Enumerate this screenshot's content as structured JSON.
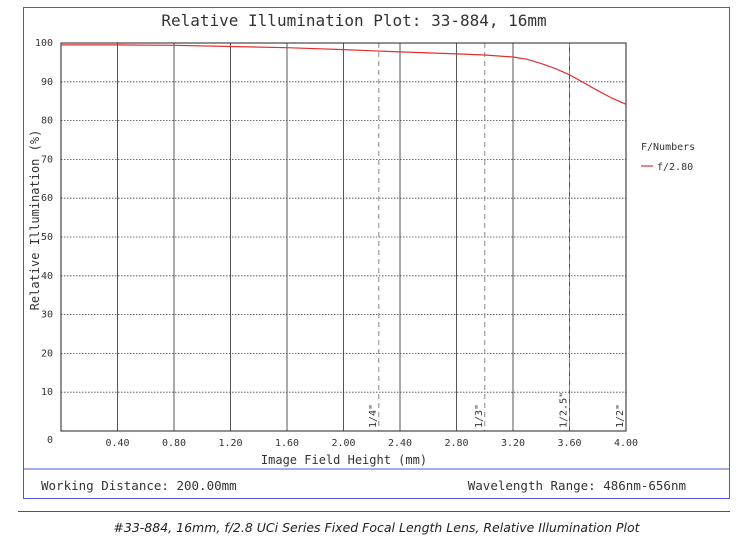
{
  "chart_data": {
    "type": "line",
    "title": "Relative Illumination Plot: 33-884, 16mm",
    "xlabel": "Image Field Height (mm)",
    "ylabel": "Relative Illumination (%)",
    "xlim": [
      0,
      4.0
    ],
    "ylim": [
      0,
      100
    ],
    "x_ticks": [
      "0.40",
      "0.80",
      "1.20",
      "1.60",
      "2.00",
      "2.40",
      "2.80",
      "3.20",
      "3.60",
      "4.00"
    ],
    "y_ticks": [
      "0",
      "10",
      "20",
      "30",
      "40",
      "50",
      "60",
      "70",
      "80",
      "90",
      "100"
    ],
    "grid": true,
    "legend_title": "F/Numbers",
    "legend_placement": "right",
    "series": [
      {
        "name": "f/2.80",
        "color": "#e03030",
        "x": [
          0.0,
          0.4,
          0.8,
          1.2,
          1.6,
          2.0,
          2.4,
          2.8,
          3.0,
          3.2,
          3.3,
          3.4,
          3.5,
          3.6,
          3.7,
          3.8,
          3.9,
          4.0
        ],
        "y": [
          99.5,
          99.5,
          99.4,
          99.1,
          98.8,
          98.3,
          97.7,
          97.2,
          96.9,
          96.4,
          95.8,
          94.7,
          93.4,
          91.8,
          89.8,
          87.7,
          85.8,
          84.2
        ]
      }
    ],
    "sensor_markers": [
      {
        "label": "1/4\"",
        "x": 2.25
      },
      {
        "label": "1/3\"",
        "x": 3.0
      },
      {
        "label": "1/2.5\"",
        "x": 3.6
      },
      {
        "label": "1/2\"",
        "x": 4.0
      }
    ]
  },
  "footer": {
    "working_distance": "Working Distance: 200.00mm",
    "wavelength_range": "Wavelength Range: 486nm-656nm"
  },
  "caption": "#33-884, 16mm, f/2.8 UCi Series Fixed Focal Length Lens, Relative Illumination Plot"
}
